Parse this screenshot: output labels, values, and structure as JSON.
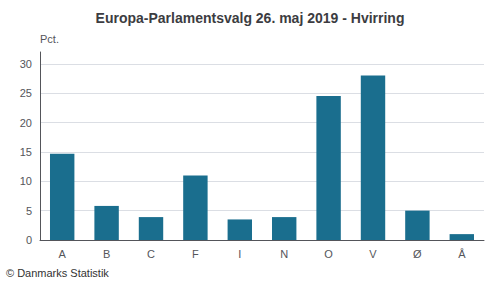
{
  "chart_data": {
    "type": "bar",
    "title": "Europa-Parlamentsvalg 26. maj 2019 - Hvirring",
    "ylabel": "Pct.",
    "annotations": [
      "© Danmarks Statistik"
    ],
    "categories": [
      "A",
      "B",
      "C",
      "F",
      "I",
      "N",
      "O",
      "V",
      "Ø",
      "Å"
    ],
    "values": [
      14.7,
      5.8,
      3.9,
      11.0,
      3.5,
      3.9,
      24.5,
      28.0,
      5.0,
      1.0
    ],
    "color": "#1a6e8e",
    "ylim": [
      0,
      32
    ],
    "yticks": [
      0,
      5,
      10,
      15,
      20,
      25,
      30
    ],
    "grid": true
  }
}
